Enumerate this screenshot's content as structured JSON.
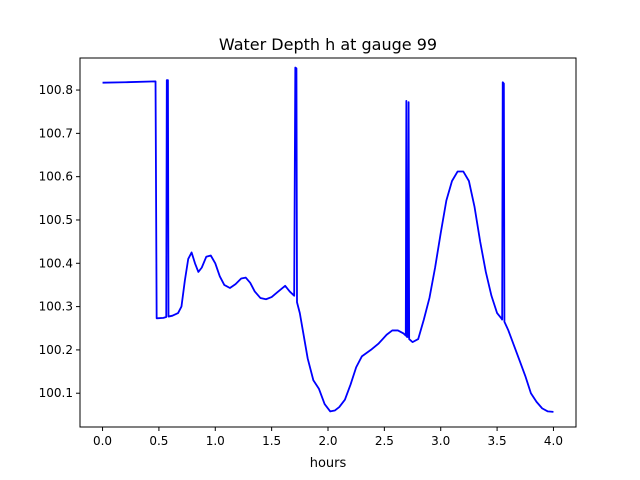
{
  "chart_data": {
    "type": "line",
    "title": "Water Depth h at gauge 99",
    "xlabel": "hours",
    "ylabel": "",
    "xlim": [
      -0.2,
      4.2
    ],
    "ylim": [
      100.022,
      100.874
    ],
    "x_ticks": [
      0.0,
      0.5,
      1.0,
      1.5,
      2.0,
      2.5,
      3.0,
      3.5,
      4.0
    ],
    "x_tick_labels": [
      "0.0",
      "0.5",
      "1.0",
      "1.5",
      "2.0",
      "2.5",
      "3.0",
      "3.5",
      "4.0"
    ],
    "y_ticks": [
      100.1,
      100.2,
      100.3,
      100.4,
      100.5,
      100.6,
      100.7,
      100.8
    ],
    "y_tick_labels": [
      "100.1",
      "100.2",
      "100.3",
      "100.4",
      "100.5",
      "100.6",
      "100.7",
      "100.8"
    ],
    "grid": false,
    "series": [
      {
        "color": "#0000ff",
        "points": [
          [
            0.0,
            100.817
          ],
          [
            0.2,
            100.818
          ],
          [
            0.47,
            100.82
          ],
          [
            0.48,
            100.273
          ],
          [
            0.54,
            100.274
          ],
          [
            0.565,
            100.276
          ],
          [
            0.57,
            100.823
          ],
          [
            0.58,
            100.823
          ],
          [
            0.585,
            100.277
          ],
          [
            0.62,
            100.279
          ],
          [
            0.67,
            100.285
          ],
          [
            0.7,
            100.3
          ],
          [
            0.73,
            100.36
          ],
          [
            0.76,
            100.41
          ],
          [
            0.79,
            100.425
          ],
          [
            0.82,
            100.4
          ],
          [
            0.85,
            100.38
          ],
          [
            0.88,
            100.39
          ],
          [
            0.92,
            100.415
          ],
          [
            0.96,
            100.418
          ],
          [
            1.0,
            100.4
          ],
          [
            1.04,
            100.37
          ],
          [
            1.08,
            100.35
          ],
          [
            1.13,
            100.343
          ],
          [
            1.18,
            100.352
          ],
          [
            1.23,
            100.365
          ],
          [
            1.27,
            100.367
          ],
          [
            1.31,
            100.355
          ],
          [
            1.35,
            100.335
          ],
          [
            1.4,
            100.32
          ],
          [
            1.45,
            100.317
          ],
          [
            1.5,
            100.322
          ],
          [
            1.55,
            100.333
          ],
          [
            1.62,
            100.348
          ],
          [
            1.66,
            100.335
          ],
          [
            1.7,
            100.325
          ],
          [
            1.71,
            100.852
          ],
          [
            1.72,
            100.85
          ],
          [
            1.725,
            100.31
          ],
          [
            1.75,
            100.285
          ],
          [
            1.78,
            100.24
          ],
          [
            1.82,
            100.18
          ],
          [
            1.87,
            100.13
          ],
          [
            1.92,
            100.11
          ],
          [
            1.97,
            100.075
          ],
          [
            2.02,
            100.058
          ],
          [
            2.06,
            100.06
          ],
          [
            2.1,
            100.068
          ],
          [
            2.15,
            100.085
          ],
          [
            2.2,
            100.12
          ],
          [
            2.25,
            100.16
          ],
          [
            2.3,
            100.185
          ],
          [
            2.38,
            100.2
          ],
          [
            2.45,
            100.215
          ],
          [
            2.52,
            100.235
          ],
          [
            2.57,
            100.245
          ],
          [
            2.62,
            100.245
          ],
          [
            2.67,
            100.238
          ],
          [
            2.69,
            100.233
          ],
          [
            2.695,
            100.775
          ],
          [
            2.7,
            100.23
          ],
          [
            2.71,
            100.23
          ],
          [
            2.715,
            100.772
          ],
          [
            2.72,
            100.225
          ],
          [
            2.75,
            100.218
          ],
          [
            2.8,
            100.225
          ],
          [
            2.85,
            100.27
          ],
          [
            2.9,
            100.32
          ],
          [
            2.95,
            100.39
          ],
          [
            3.0,
            100.47
          ],
          [
            3.05,
            100.545
          ],
          [
            3.1,
            100.59
          ],
          [
            3.15,
            100.612
          ],
          [
            3.2,
            100.612
          ],
          [
            3.25,
            100.59
          ],
          [
            3.3,
            100.53
          ],
          [
            3.35,
            100.45
          ],
          [
            3.4,
            100.38
          ],
          [
            3.45,
            100.325
          ],
          [
            3.5,
            100.285
          ],
          [
            3.54,
            100.272
          ],
          [
            3.545,
            100.27
          ],
          [
            3.55,
            100.818
          ],
          [
            3.56,
            100.815
          ],
          [
            3.565,
            100.265
          ],
          [
            3.6,
            100.245
          ],
          [
            3.65,
            100.21
          ],
          [
            3.7,
            100.175
          ],
          [
            3.75,
            100.14
          ],
          [
            3.8,
            100.1
          ],
          [
            3.85,
            100.08
          ],
          [
            3.9,
            100.065
          ],
          [
            3.95,
            100.058
          ],
          [
            4.0,
            100.057
          ]
        ]
      }
    ]
  }
}
